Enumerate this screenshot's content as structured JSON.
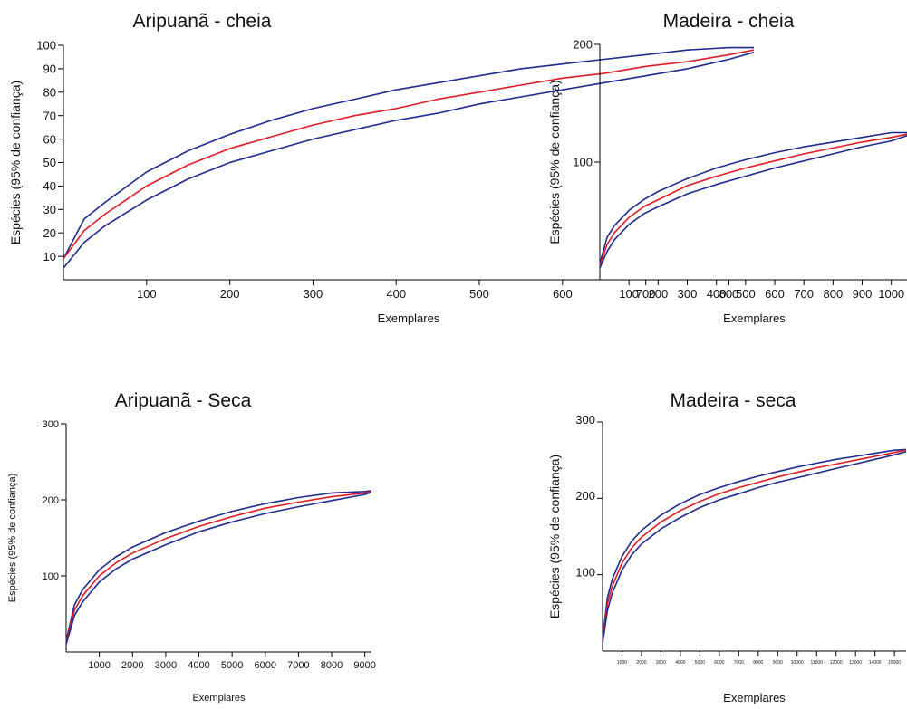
{
  "chart_data": [
    {
      "type": "line",
      "title": "Aripuanã - cheia",
      "xlabel": "Exemplares",
      "ylabel": "Espécies (95% de confiança)",
      "xlim": [
        0,
        830
      ],
      "ylim": [
        0,
        100
      ],
      "xticks": [
        100,
        200,
        300,
        400,
        500,
        600,
        700,
        800
      ],
      "yticks": [
        10,
        20,
        30,
        40,
        50,
        60,
        70,
        80,
        90,
        100
      ],
      "series": [
        {
          "role": "upper",
          "color": "#1f2b8f",
          "x": [
            0,
            25,
            50,
            100,
            150,
            200,
            250,
            300,
            350,
            400,
            450,
            500,
            550,
            600,
            650,
            700,
            750,
            800,
            830
          ],
          "y": [
            9,
            26,
            33,
            46,
            55,
            62,
            68,
            73,
            77,
            81,
            84,
            87,
            90,
            92,
            94,
            96,
            98,
            99,
            99
          ]
        },
        {
          "role": "mean",
          "color": "#e01b24",
          "x": [
            0,
            25,
            50,
            100,
            150,
            200,
            250,
            300,
            350,
            400,
            450,
            500,
            550,
            600,
            650,
            700,
            750,
            800,
            830
          ],
          "y": [
            9,
            21,
            28,
            40,
            49,
            56,
            61,
            66,
            70,
            73,
            77,
            80,
            83,
            86,
            88,
            91,
            93,
            96,
            98
          ]
        },
        {
          "role": "lower",
          "color": "#1f2b8f",
          "x": [
            0,
            25,
            50,
            100,
            150,
            200,
            250,
            300,
            350,
            400,
            450,
            500,
            550,
            600,
            650,
            700,
            750,
            800,
            830
          ],
          "y": [
            5,
            16,
            23,
            34,
            43,
            50,
            55,
            60,
            64,
            68,
            71,
            75,
            78,
            81,
            84,
            87,
            90,
            94,
            97
          ]
        }
      ]
    },
    {
      "type": "line",
      "title": "Madeira - cheia",
      "xlabel": "Exemplares",
      "ylabel": "Espécies (95% de confiança)",
      "xlim": [
        0,
        1060
      ],
      "ylim": [
        0,
        200
      ],
      "xticks": [
        100,
        200,
        300,
        400,
        500,
        600,
        700,
        800,
        900,
        1000
      ],
      "yticks": [
        100,
        200
      ],
      "series": [
        {
          "role": "upper",
          "color": "#1f2b8f",
          "x": [
            0,
            25,
            50,
            100,
            150,
            200,
            300,
            400,
            500,
            600,
            700,
            800,
            900,
            1000,
            1060
          ],
          "y": [
            14,
            36,
            46,
            59,
            68,
            75,
            86,
            95,
            102,
            108,
            113,
            117,
            121,
            125,
            125
          ]
        },
        {
          "role": "mean",
          "color": "#e01b24",
          "x": [
            0,
            25,
            50,
            100,
            150,
            200,
            300,
            400,
            500,
            600,
            700,
            800,
            900,
            1000,
            1060
          ],
          "y": [
            12,
            30,
            40,
            53,
            62,
            68,
            80,
            88,
            95,
            101,
            107,
            112,
            117,
            121,
            124
          ]
        },
        {
          "role": "lower",
          "color": "#1f2b8f",
          "x": [
            0,
            25,
            50,
            100,
            150,
            200,
            300,
            400,
            500,
            600,
            700,
            800,
            900,
            1000,
            1060
          ],
          "y": [
            10,
            24,
            34,
            47,
            56,
            62,
            73,
            81,
            88,
            95,
            101,
            107,
            113,
            118,
            123
          ]
        }
      ]
    },
    {
      "type": "line",
      "title": "Aripuanã - Seca",
      "xlabel": "Exemplares",
      "ylabel": "Espécies (95% de confiança)",
      "xlim": [
        0,
        9200
      ],
      "ylim": [
        0,
        300
      ],
      "xticks": [
        1000,
        2000,
        3000,
        4000,
        5000,
        6000,
        7000,
        8000,
        9000
      ],
      "yticks": [
        100,
        200,
        300
      ],
      "series": [
        {
          "role": "upper",
          "color": "#1f2b8f",
          "x": [
            0,
            250,
            500,
            1000,
            1500,
            2000,
            3000,
            4000,
            5000,
            6000,
            7000,
            8000,
            9000,
            9200
          ],
          "y": [
            15,
            62,
            82,
            108,
            125,
            138,
            157,
            172,
            185,
            195,
            203,
            209,
            211,
            212
          ]
        },
        {
          "role": "mean",
          "color": "#e01b24",
          "x": [
            0,
            250,
            500,
            1000,
            1500,
            2000,
            3000,
            4000,
            5000,
            6000,
            7000,
            8000,
            9000,
            9200
          ],
          "y": [
            13,
            55,
            74,
            100,
            117,
            130,
            149,
            165,
            178,
            189,
            197,
            204,
            209,
            211
          ]
        },
        {
          "role": "lower",
          "color": "#1f2b8f",
          "x": [
            0,
            250,
            500,
            1000,
            1500,
            2000,
            3000,
            4000,
            5000,
            6000,
            7000,
            8000,
            9000,
            9200
          ],
          "y": [
            10,
            48,
            66,
            92,
            109,
            122,
            141,
            158,
            171,
            182,
            191,
            199,
            207,
            210
          ]
        }
      ]
    },
    {
      "type": "line",
      "title": "Madeira - seca",
      "xlabel": "Exemplares",
      "ylabel": "Espécies (95% de confiança)",
      "xlim": [
        0,
        15600
      ],
      "ylim": [
        0,
        300
      ],
      "xticks": [
        1000,
        2000,
        3000,
        4000,
        5000,
        6000,
        7000,
        8000,
        9000,
        10000,
        11000,
        12000,
        13000,
        14000,
        15000
      ],
      "yticks": [
        100,
        200,
        300
      ],
      "series": [
        {
          "role": "upper",
          "color": "#1f2b8f",
          "x": [
            0,
            250,
            500,
            1000,
            1500,
            2000,
            3000,
            4000,
            5000,
            6000,
            7000,
            8000,
            9000,
            10000,
            11000,
            12000,
            13000,
            14000,
            15000,
            15600
          ],
          "y": [
            16,
            70,
            94,
            124,
            144,
            158,
            178,
            193,
            205,
            214,
            222,
            229,
            235,
            241,
            246,
            251,
            255,
            259,
            263,
            264
          ]
        },
        {
          "role": "mean",
          "color": "#e01b24",
          "x": [
            0,
            250,
            500,
            1000,
            1500,
            2000,
            3000,
            4000,
            5000,
            6000,
            7000,
            8000,
            9000,
            10000,
            11000,
            12000,
            13000,
            14000,
            15000,
            15600
          ],
          "y": [
            13,
            62,
            85,
            115,
            135,
            149,
            169,
            184,
            196,
            206,
            214,
            221,
            228,
            234,
            240,
            245,
            250,
            255,
            260,
            263
          ]
        },
        {
          "role": "lower",
          "color": "#1f2b8f",
          "x": [
            0,
            250,
            500,
            1000,
            1500,
            2000,
            3000,
            4000,
            5000,
            6000,
            7000,
            8000,
            9000,
            10000,
            11000,
            12000,
            13000,
            14000,
            15000,
            15600
          ],
          "y": [
            10,
            53,
            76,
            106,
            126,
            140,
            160,
            175,
            188,
            198,
            206,
            214,
            221,
            227,
            233,
            239,
            245,
            251,
            257,
            261
          ]
        }
      ]
    }
  ]
}
